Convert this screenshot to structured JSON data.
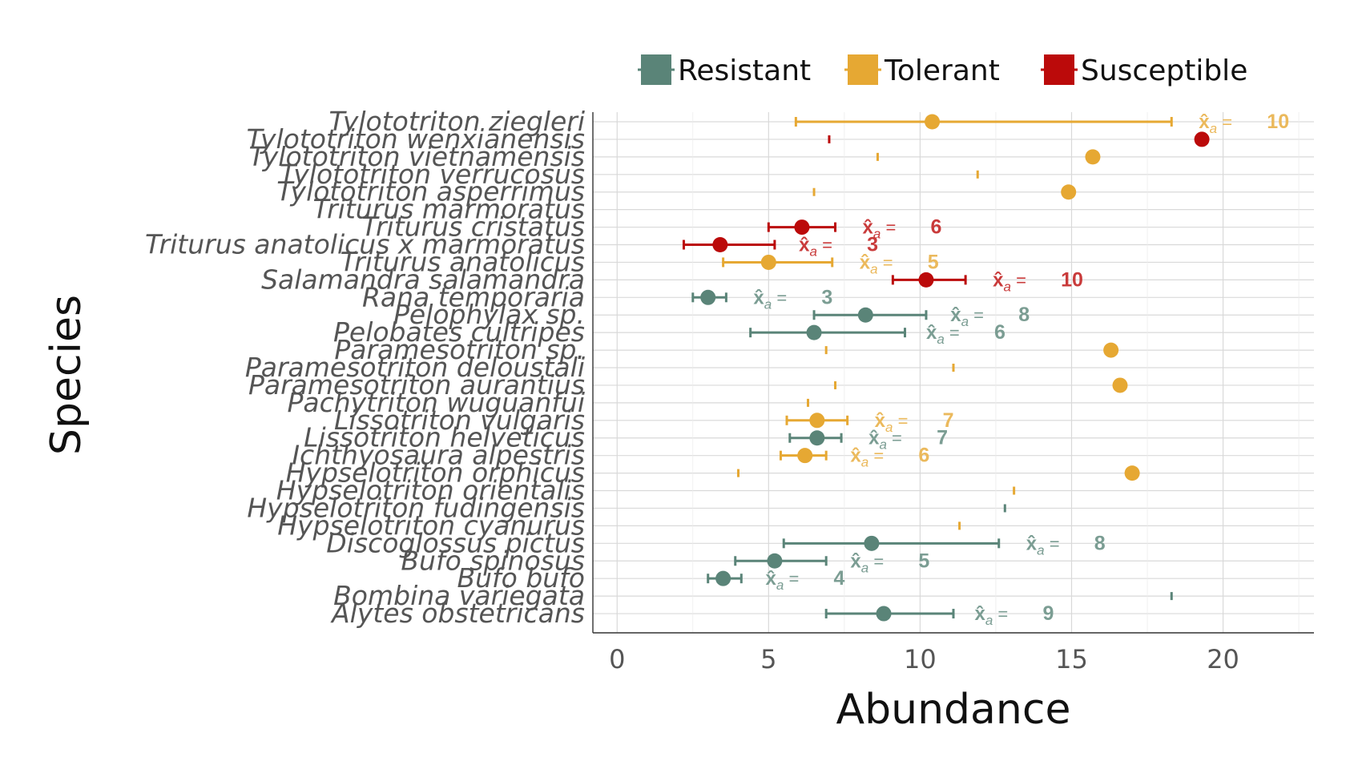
{
  "chart_data": {
    "type": "scatter",
    "title": "",
    "xlabel": "Abundance",
    "ylabel": "Species",
    "xlim": [
      -0.8,
      23
    ],
    "x_ticks": [
      0,
      5,
      10,
      15,
      20
    ],
    "grid": true,
    "legend_position": "top",
    "series": [
      {
        "name": "Resistant",
        "color": "#5a8478"
      },
      {
        "name": "Tolerant",
        "color": "#e6a833"
      },
      {
        "name": "Susceptible",
        "color": "#bb0a0a"
      }
    ],
    "annotation_prefix": "x̂a =",
    "species": [
      {
        "name": "Tylototriton ziegleri",
        "group": "Tolerant",
        "mean": 10.4,
        "low": 5.9,
        "high": 18.3,
        "n_label": "10",
        "ann_x": 19.2
      },
      {
        "name": "Tylototriton wenxianensis",
        "group": "Susceptible",
        "mean": 19.3,
        "low": 7.0,
        "high": 7.0
      },
      {
        "name": "Tylototriton vietnamensis",
        "group": "Tolerant",
        "mean": 15.7,
        "low": 8.6,
        "high": 8.6
      },
      {
        "name": "Tylototriton verrucosus",
        "group": "Tolerant",
        "mean": null,
        "low": 11.9,
        "high": 11.9
      },
      {
        "name": "Tylototriton asperrimus",
        "group": "Tolerant",
        "mean": 14.9,
        "low": 6.5,
        "high": 6.5
      },
      {
        "name": "Triturus marmoratus",
        "group": "Susceptible",
        "mean": null,
        "low": null,
        "high": null
      },
      {
        "name": "Triturus cristatus",
        "group": "Susceptible",
        "mean": 6.1,
        "low": 5.0,
        "high": 7.2,
        "n_label": "6",
        "ann_x": 8.1
      },
      {
        "name": "Triturus anatolicus x marmoratus",
        "group": "Susceptible",
        "mean": 3.4,
        "low": 2.2,
        "high": 5.2,
        "n_label": "3",
        "ann_x": 6.0
      },
      {
        "name": "Triturus anatolicus",
        "group": "Tolerant",
        "mean": 5.0,
        "low": 3.5,
        "high": 7.1,
        "n_label": "5",
        "ann_x": 8.0
      },
      {
        "name": "Salamandra salamandra",
        "group": "Susceptible",
        "mean": 10.2,
        "low": 9.1,
        "high": 11.5,
        "n_label": "10",
        "ann_x": 12.4
      },
      {
        "name": "Rana temporaria",
        "group": "Resistant",
        "mean": 3.0,
        "low": 2.5,
        "high": 3.6,
        "n_label": "3",
        "ann_x": 4.5
      },
      {
        "name": "Pelophylax sp.",
        "group": "Resistant",
        "mean": 8.2,
        "low": 6.5,
        "high": 10.2,
        "n_label": "8",
        "ann_x": 11.0
      },
      {
        "name": "Pelobates cultripes",
        "group": "Resistant",
        "mean": 6.5,
        "low": 4.4,
        "high": 9.5,
        "n_label": "6",
        "ann_x": 10.2
      },
      {
        "name": "Paramesotriton sp.",
        "group": "Tolerant",
        "mean": 16.3,
        "low": 6.9,
        "high": 6.9
      },
      {
        "name": "Paramesotriton deloustali",
        "group": "Tolerant",
        "mean": null,
        "low": 11.1,
        "high": 11.1
      },
      {
        "name": "Paramesotriton aurantius",
        "group": "Tolerant",
        "mean": 16.6,
        "low": 7.2,
        "high": 7.2
      },
      {
        "name": "Pachytriton wuguanfui",
        "group": "Tolerant",
        "mean": null,
        "low": 6.3,
        "high": 6.3
      },
      {
        "name": "Lissotriton vulgaris",
        "group": "Tolerant",
        "mean": 6.6,
        "low": 5.6,
        "high": 7.6,
        "n_label": "7",
        "ann_x": 8.5
      },
      {
        "name": "Lissotriton helveticus",
        "group": "Resistant",
        "mean": 6.6,
        "low": 5.7,
        "high": 7.4,
        "n_label": "7",
        "ann_x": 8.3
      },
      {
        "name": "Ichthyosaura alpestris",
        "group": "Tolerant",
        "mean": 6.2,
        "low": 5.4,
        "high": 6.9,
        "n_label": "6",
        "ann_x": 7.7
      },
      {
        "name": "Hypselotriton orphicus",
        "group": "Tolerant",
        "mean": 17.0,
        "low": 4.0,
        "high": 4.0
      },
      {
        "name": "Hypselotriton orientalis",
        "group": "Tolerant",
        "mean": null,
        "low": 13.1,
        "high": 13.1
      },
      {
        "name": "Hypselotriton fudingensis",
        "group": "Resistant",
        "mean": null,
        "low": 12.8,
        "high": 12.8
      },
      {
        "name": "Hypselotriton cyanurus",
        "group": "Tolerant",
        "mean": null,
        "low": 11.3,
        "high": 11.3
      },
      {
        "name": "Discoglossus pictus",
        "group": "Resistant",
        "mean": 8.4,
        "low": 5.5,
        "high": 12.6,
        "n_label": "8",
        "ann_x": 13.5
      },
      {
        "name": "Bufo spinosus",
        "group": "Resistant",
        "mean": 5.2,
        "low": 3.9,
        "high": 6.9,
        "n_label": "5",
        "ann_x": 7.7
      },
      {
        "name": "Bufo bufo",
        "group": "Resistant",
        "mean": 3.5,
        "low": 3.0,
        "high": 4.1,
        "n_label": "4",
        "ann_x": 4.9
      },
      {
        "name": "Bombina variegata",
        "group": "Resistant",
        "mean": null,
        "low": 18.3,
        "high": 18.3
      },
      {
        "name": "Alytes obstetricans",
        "group": "Resistant",
        "mean": 8.8,
        "low": 6.9,
        "high": 11.1,
        "n_label": "9",
        "ann_x": 11.8
      }
    ]
  }
}
